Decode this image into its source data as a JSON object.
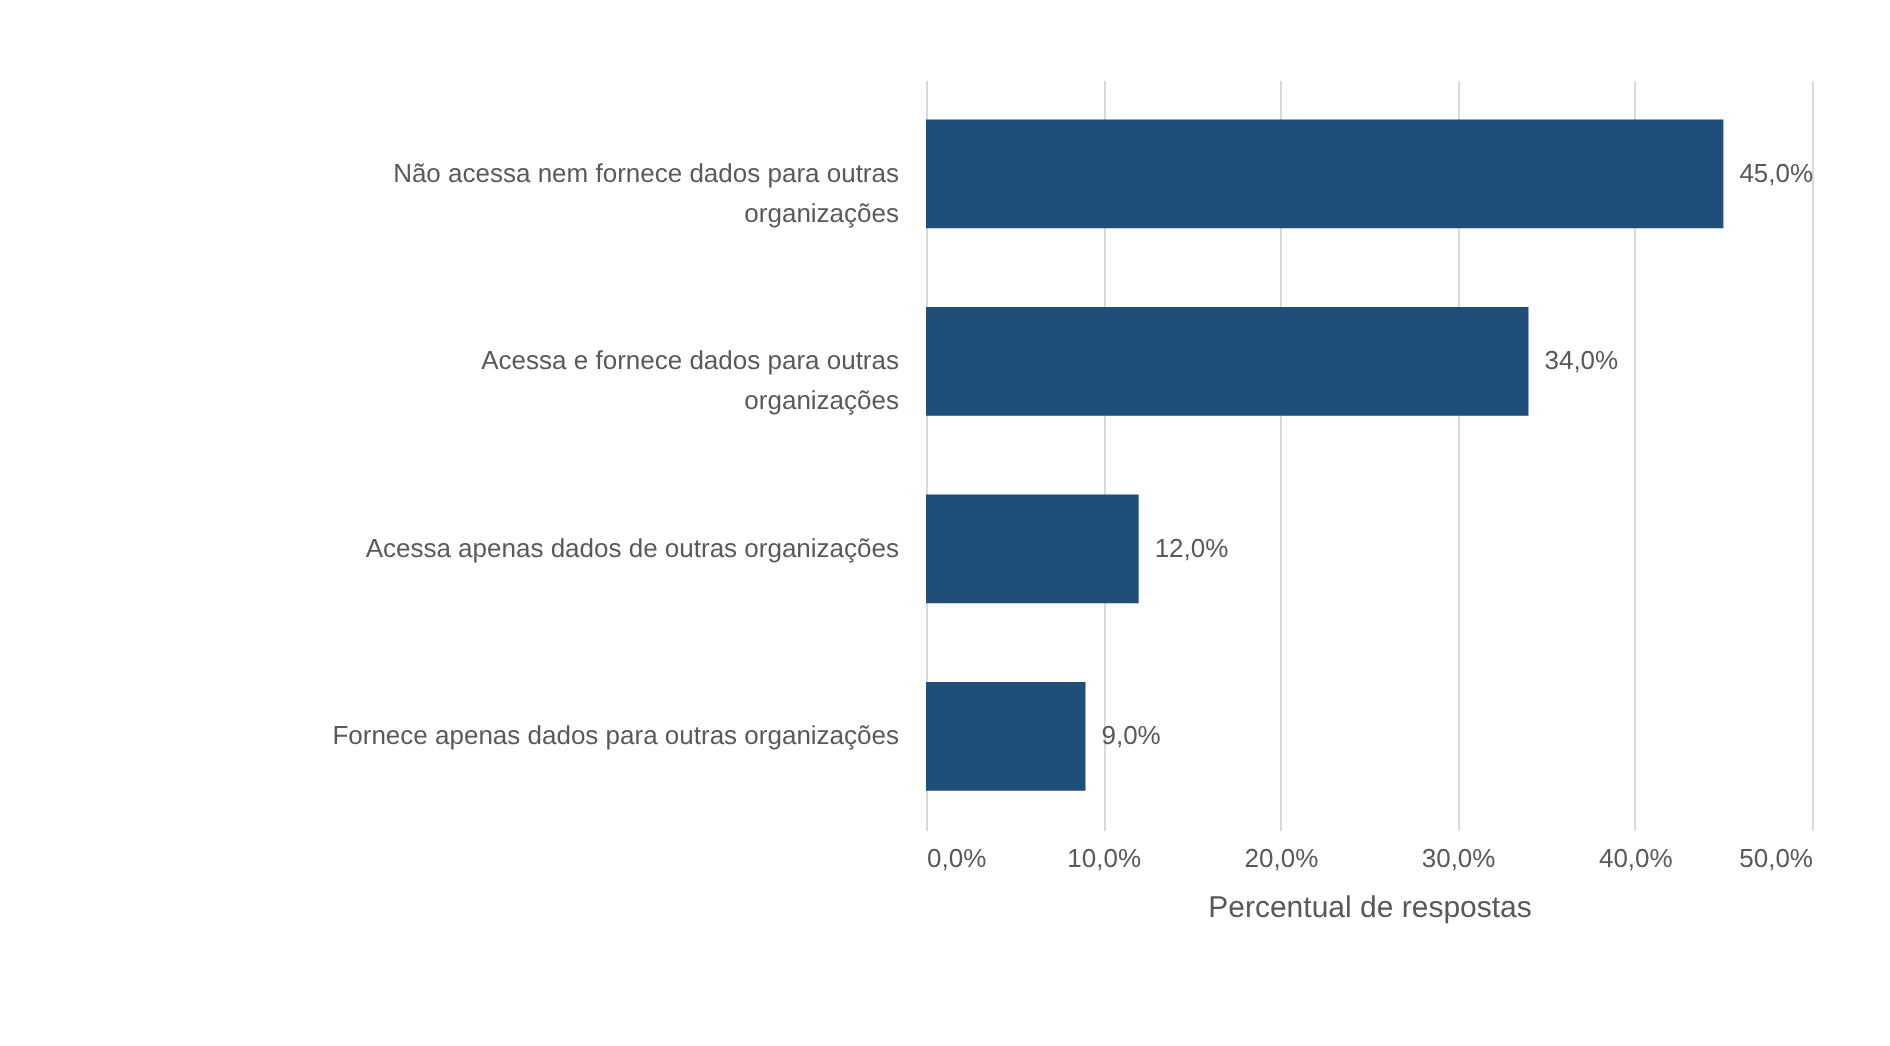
{
  "chart_data": {
    "type": "bar",
    "orientation": "horizontal",
    "xlabel": "Percentual de respostas",
    "categories": [
      "Não acessa nem fornece dados para outras organizações",
      "Acessa e fornece dados para outras organizações",
      "Acessa apenas dados de outras organizações",
      "Fornece apenas dados para outras organizações"
    ],
    "values": [
      45,
      34,
      12,
      9
    ],
    "value_labels": [
      "45,0%",
      "34,0%",
      "12,0%",
      "9,0%"
    ],
    "color": "#1f4e79",
    "xlim": [
      0,
      50
    ],
    "xticks": [
      {
        "value": 0,
        "label": "0,0%"
      },
      {
        "value": 10,
        "label": "10,0%"
      },
      {
        "value": 20,
        "label": "20,0%"
      },
      {
        "value": 30,
        "label": "30,0%"
      },
      {
        "value": 40,
        "label": "40,0%"
      },
      {
        "value": 50,
        "label": "50,0%"
      }
    ],
    "grid": "x"
  }
}
